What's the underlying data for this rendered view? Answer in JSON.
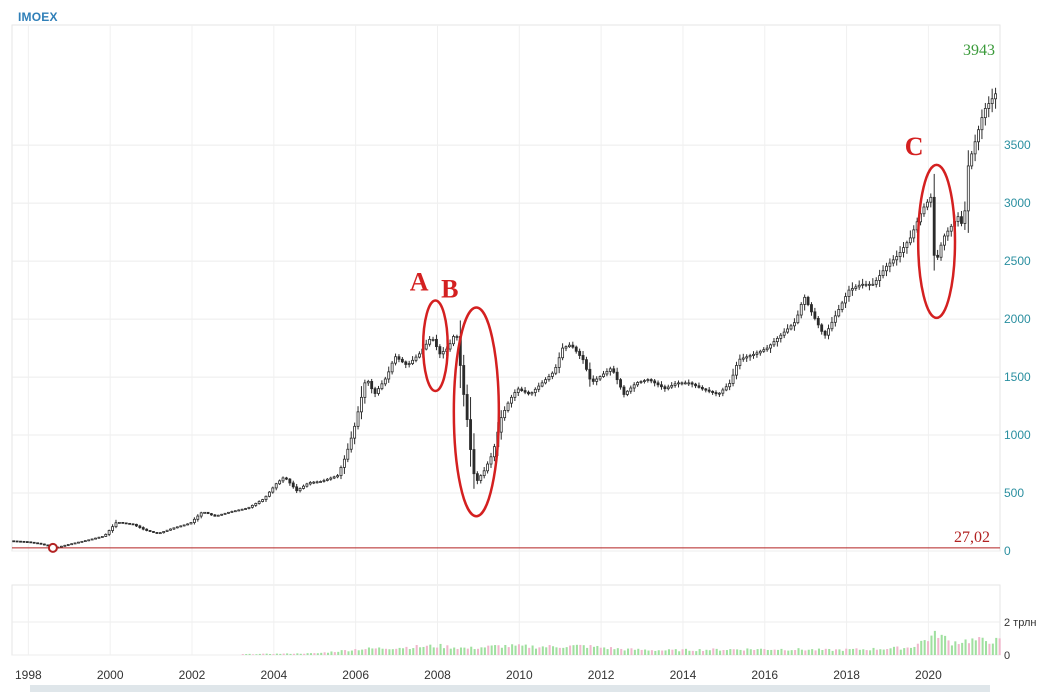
{
  "header": {
    "ticker": "IMOEX"
  },
  "chart_data": {
    "type": "candlestick",
    "title": "IMOEX",
    "price_axis": {
      "ticks": [
        "0",
        "500",
        "1000",
        "1500",
        "2000",
        "2500",
        "3000",
        "3500"
      ],
      "ylim": [
        0,
        4450
      ]
    },
    "volume_axis": {
      "ticks": [
        "0",
        "2 трлн"
      ]
    },
    "x_axis": {
      "ticks": [
        "1998",
        "2000",
        "2002",
        "2004",
        "2006",
        "2008",
        "2010",
        "2012",
        "2014",
        "2016",
        "2018",
        "2020"
      ],
      "xlim": [
        1997.6,
        2021.75
      ]
    },
    "grid": true,
    "price_points": [
      [
        1997.6,
        88
      ],
      [
        1998.0,
        80
      ],
      [
        1998.3,
        65
      ],
      [
        1998.7,
        27
      ],
      [
        1999.0,
        55
      ],
      [
        1999.5,
        95
      ],
      [
        1999.9,
        130
      ],
      [
        2000.2,
        250
      ],
      [
        2000.6,
        230
      ],
      [
        2000.9,
        180
      ],
      [
        2001.2,
        150
      ],
      [
        2001.6,
        200
      ],
      [
        2002.0,
        240
      ],
      [
        2002.3,
        340
      ],
      [
        2002.6,
        300
      ],
      [
        2003.0,
        340
      ],
      [
        2003.4,
        370
      ],
      [
        2003.8,
        450
      ],
      [
        2004.1,
        580
      ],
      [
        2004.3,
        640
      ],
      [
        2004.6,
        520
      ],
      [
        2004.9,
        590
      ],
      [
        2005.2,
        600
      ],
      [
        2005.6,
        650
      ],
      [
        2005.8,
        820
      ],
      [
        2006.0,
        1050
      ],
      [
        2006.3,
        1500
      ],
      [
        2006.5,
        1350
      ],
      [
        2006.8,
        1500
      ],
      [
        2007.0,
        1680
      ],
      [
        2007.3,
        1600
      ],
      [
        2007.6,
        1700
      ],
      [
        2007.9,
        1850
      ],
      [
        2008.1,
        1700
      ],
      [
        2008.3,
        1750
      ],
      [
        2008.5,
        1900
      ],
      [
        2008.6,
        1600
      ],
      [
        2008.7,
        1300
      ],
      [
        2008.8,
        1050
      ],
      [
        2008.9,
        700
      ],
      [
        2009.0,
        600
      ],
      [
        2009.2,
        700
      ],
      [
        2009.4,
        850
      ],
      [
        2009.6,
        1150
      ],
      [
        2009.8,
        1300
      ],
      [
        2010.0,
        1400
      ],
      [
        2010.3,
        1350
      ],
      [
        2010.6,
        1450
      ],
      [
        2010.9,
        1550
      ],
      [
        2011.1,
        1750
      ],
      [
        2011.3,
        1780
      ],
      [
        2011.6,
        1650
      ],
      [
        2011.8,
        1450
      ],
      [
        2012.0,
        1500
      ],
      [
        2012.3,
        1580
      ],
      [
        2012.6,
        1350
      ],
      [
        2012.9,
        1450
      ],
      [
        2013.2,
        1480
      ],
      [
        2013.6,
        1400
      ],
      [
        2013.9,
        1450
      ],
      [
        2014.2,
        1450
      ],
      [
        2014.5,
        1400
      ],
      [
        2014.9,
        1350
      ],
      [
        2015.2,
        1450
      ],
      [
        2015.4,
        1650
      ],
      [
        2015.8,
        1700
      ],
      [
        2016.1,
        1750
      ],
      [
        2016.4,
        1850
      ],
      [
        2016.8,
        1980
      ],
      [
        2017.0,
        2200
      ],
      [
        2017.2,
        2050
      ],
      [
        2017.5,
        1850
      ],
      [
        2017.8,
        2050
      ],
      [
        2018.1,
        2250
      ],
      [
        2018.4,
        2300
      ],
      [
        2018.7,
        2300
      ],
      [
        2019.0,
        2450
      ],
      [
        2019.3,
        2550
      ],
      [
        2019.6,
        2700
      ],
      [
        2019.9,
        2950
      ],
      [
        2020.1,
        3050
      ],
      [
        2020.2,
        2450
      ],
      [
        2020.4,
        2700
      ],
      [
        2020.6,
        2800
      ],
      [
        2020.8,
        2900
      ],
      [
        2020.9,
        2750
      ],
      [
        2021.0,
        3300
      ],
      [
        2021.2,
        3550
      ],
      [
        2021.4,
        3800
      ],
      [
        2021.6,
        3900
      ],
      [
        2021.65,
        3943
      ]
    ],
    "volume_points": [
      [
        2003.2,
        0.05
      ],
      [
        2005.0,
        0.1
      ],
      [
        2006.0,
        0.35
      ],
      [
        2007.0,
        0.45
      ],
      [
        2008.0,
        0.55
      ],
      [
        2008.7,
        0.4
      ],
      [
        2009.5,
        0.55
      ],
      [
        2010.5,
        0.5
      ],
      [
        2011.5,
        0.55
      ],
      [
        2012.5,
        0.35
      ],
      [
        2013.5,
        0.28
      ],
      [
        2014.5,
        0.32
      ],
      [
        2015.5,
        0.35
      ],
      [
        2016.5,
        0.35
      ],
      [
        2017.5,
        0.3
      ],
      [
        2018.5,
        0.35
      ],
      [
        2019.5,
        0.45
      ],
      [
        2020.2,
        1.3
      ],
      [
        2020.5,
        0.75
      ],
      [
        2021.0,
        0.9
      ],
      [
        2021.7,
        0.85
      ]
    ],
    "annotations": [
      {
        "label": "A",
        "x": 2007.95,
        "y": 1770,
        "rx": 0.3,
        "ry": 390
      },
      {
        "label": "B",
        "x": 2008.95,
        "y": 1200,
        "rx": 0.55,
        "ry": 900
      },
      {
        "label": "C",
        "x": 2020.2,
        "y": 2670,
        "rx": 0.45,
        "ry": 660
      }
    ],
    "last_price": "3943",
    "min_price": "27,02",
    "min_point": [
      1998.6,
      27.02
    ],
    "colors": {
      "candle": "#2b2b2b",
      "last": "#3a9a3a",
      "min_line": "#b22222",
      "annotation": "#d42020",
      "axis_text": "#2a8fa0",
      "vol_up": "#9fe09f",
      "vol_down": "#f0b6cc"
    }
  }
}
